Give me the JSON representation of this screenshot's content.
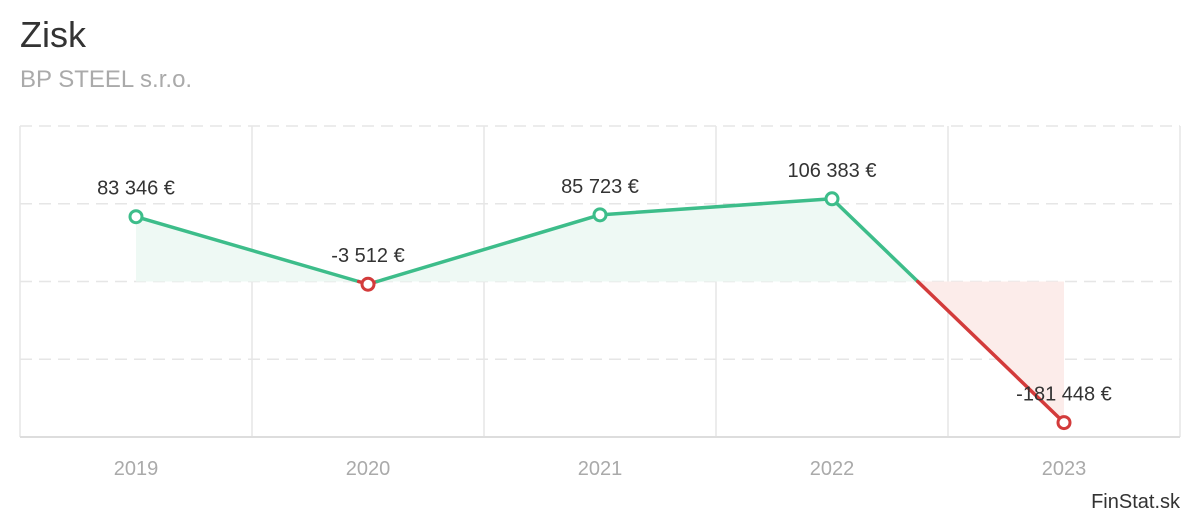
{
  "chart_data": {
    "type": "line",
    "title": "Zisk",
    "subtitle": "BP STEEL s.r.o.",
    "credit": "FinStat.sk",
    "categories": [
      "2019",
      "2020",
      "2021",
      "2022",
      "2023"
    ],
    "series": [
      {
        "values": [
          83346,
          -3512,
          85723,
          106383,
          -181448
        ],
        "labels": [
          "83 346 €",
          "-3 512 €",
          "85 723 €",
          "106 383 €",
          "-181 448 €"
        ]
      }
    ],
    "ylim": [
      -200000,
      200000
    ],
    "y_gridlines": [
      -100000,
      0,
      100000,
      200000
    ],
    "grid": true,
    "legend": "none",
    "colors": {
      "positive": "#3dbd8a",
      "negative": "#d33b3b",
      "positive_fill": "#eef9f4",
      "negative_fill": "#fcecea",
      "grid": "#e6e6e6",
      "axis_text": "#aaaaaa",
      "text": "#333333"
    }
  }
}
